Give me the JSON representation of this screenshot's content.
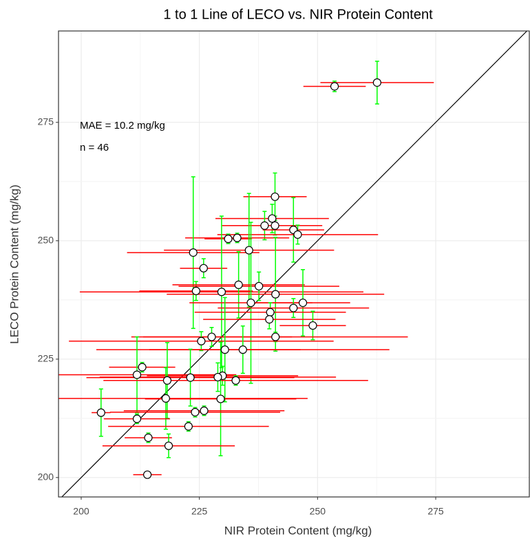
{
  "chart_data": {
    "type": "scatter",
    "title": "1 to 1 Line of LECO vs. NIR Protein Content",
    "x_label": "NIR Protein Content (mg/kg)",
    "y_label": "LECO Protein Content (mg/kg)",
    "annotations": [
      "MAE  = 10.2 mg/kg",
      "n = 46"
    ],
    "xlim": [
      195.2,
      294.8
    ],
    "ylim": [
      195.9,
      294.3
    ],
    "xticks": [
      200,
      225,
      250,
      275
    ],
    "yticks": [
      200,
      225,
      250,
      275
    ],
    "grid": true,
    "identity_line": true,
    "point_color": "#ffffff",
    "point_edge_color": "#000000",
    "line_color": "#000000",
    "x_error_color": "#ff0000",
    "y_error_color": "#00ff00",
    "x": [
      253.6,
      262.6,
      241.0,
      240.4,
      238.8,
      241.0,
      244.9,
      245.8,
      231.1,
      233.0,
      223.7,
      235.5,
      225.9,
      224.3,
      229.7,
      233.3,
      237.6,
      241.1,
      235.9,
      246.9,
      240.0,
      244.9,
      239.8,
      249.0,
      241.1,
      227.6,
      225.4,
      234.2,
      230.4,
      212.9,
      211.8,
      229.9,
      223.1,
      228.9,
      232.7,
      218.2,
      217.9,
      229.5,
      224.1,
      226.0,
      204.2,
      211.8,
      222.7,
      214.2,
      218.5,
      214.0
    ],
    "values": [
      282.6,
      283.4,
      259.3,
      254.7,
      253.2,
      253.2,
      252.3,
      251.3,
      250.4,
      250.6,
      247.5,
      248.0,
      244.2,
      239.4,
      239.2,
      240.7,
      240.4,
      238.7,
      236.9,
      236.9,
      234.9,
      235.8,
      233.4,
      232.1,
      229.7,
      229.7,
      228.8,
      227.0,
      227.0,
      223.3,
      221.7,
      221.5,
      221.1,
      221.2,
      220.5,
      220.5,
      216.7,
      216.6,
      213.8,
      214.1,
      213.7,
      212.4,
      210.8,
      208.4,
      206.7,
      200.6
    ],
    "x_error": [
      6.6,
      12,
      6.7,
      12,
      9,
      10,
      6.5,
      17,
      5,
      11,
      14,
      18,
      5,
      12,
      30,
      14,
      17,
      23,
      13,
      10,
      16,
      16,
      14,
      7,
      28,
      17,
      28,
      31,
      16,
      7,
      21,
      16,
      22,
      25,
      28,
      8,
      30,
      16,
      18,
      17,
      2,
      7,
      17,
      5,
      14,
      3
    ],
    "y_error": [
      1.1,
      4.5,
      5,
      3,
      3,
      2,
      6.8,
      2,
      1,
      1,
      16,
      12,
      2,
      2,
      16,
      7,
      3,
      12,
      17,
      7,
      2,
      2,
      2,
      3,
      1,
      2,
      2,
      5,
      11,
      1,
      8,
      2,
      6,
      3,
      1,
      8,
      6.5,
      12,
      1,
      1,
      5,
      1,
      1,
      1,
      2.5,
      0.5
    ]
  }
}
